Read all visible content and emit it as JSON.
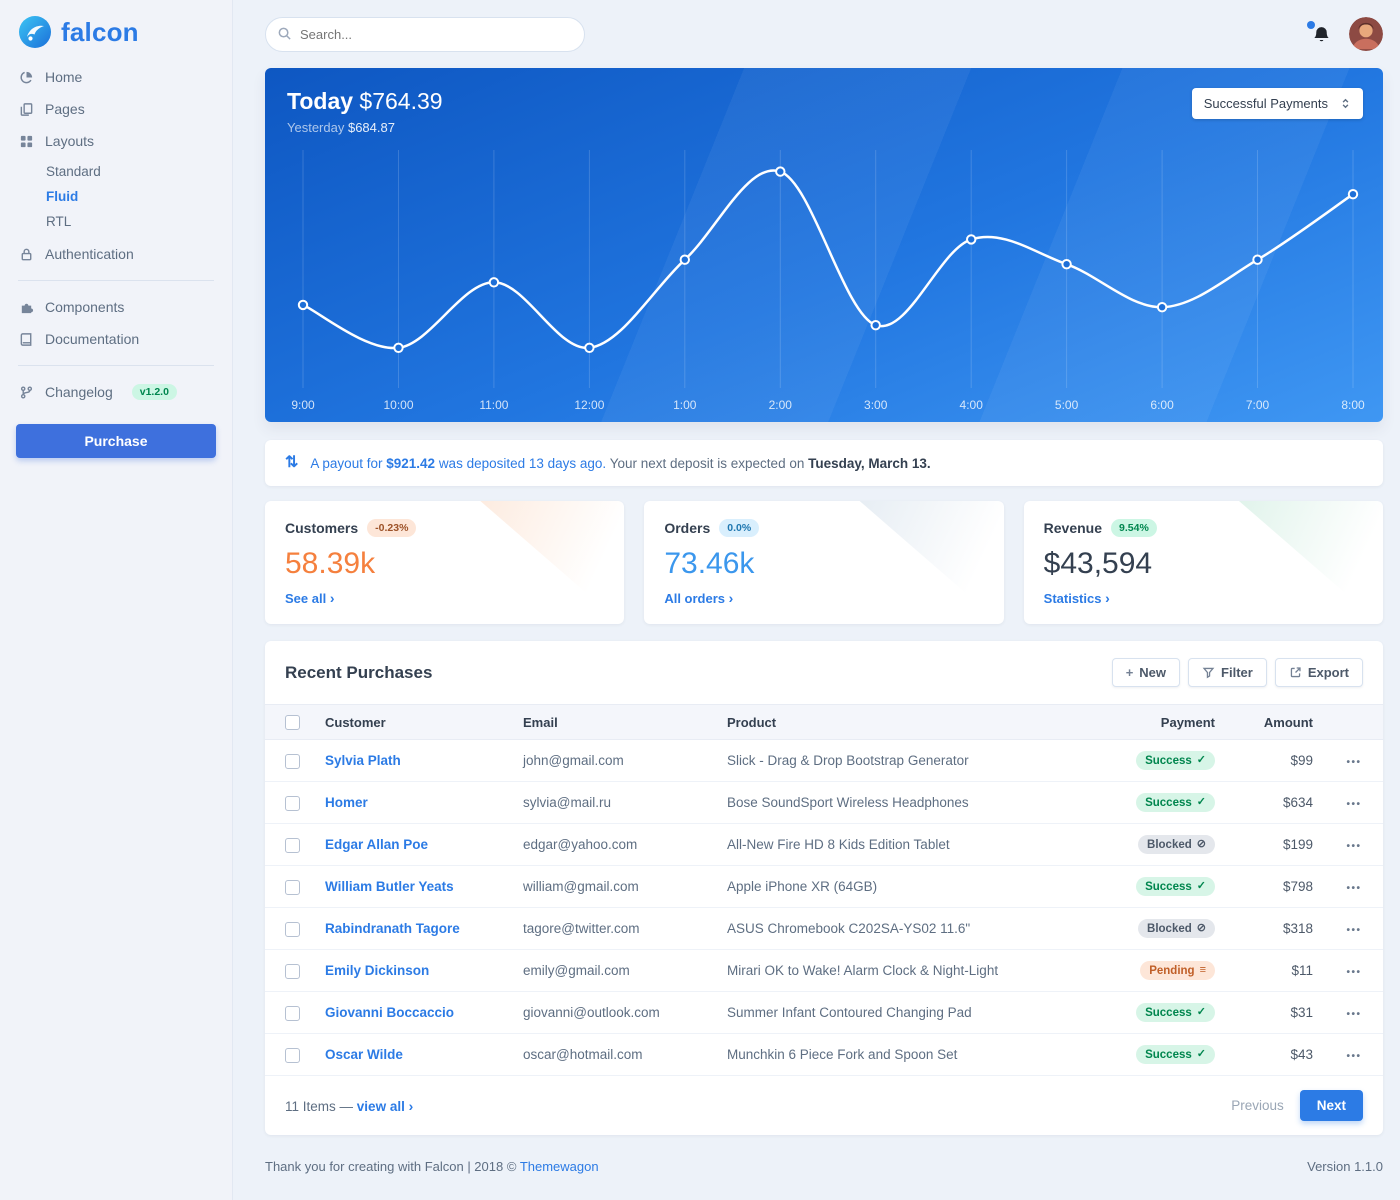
{
  "brand": {
    "name": "falcon"
  },
  "topbar": {
    "search_placeholder": "Search..."
  },
  "sidebar": {
    "items": [
      {
        "label": "Home"
      },
      {
        "label": "Pages"
      },
      {
        "label": "Layouts"
      },
      {
        "label": "Authentication"
      },
      {
        "label": "Components"
      },
      {
        "label": "Documentation"
      },
      {
        "label": "Changelog"
      }
    ],
    "layouts_children": [
      {
        "label": "Standard"
      },
      {
        "label": "Fluid"
      },
      {
        "label": "RTL"
      }
    ],
    "changelog_badge": "v1.2.0",
    "purchase_label": "Purchase"
  },
  "chart_header": {
    "today_label": "Today",
    "today_value": "$764.39",
    "yesterday_label": "Yesterday",
    "yesterday_value": "$684.87",
    "dropdown_label": "Successful Payments"
  },
  "chart_data": {
    "type": "line",
    "title": "Today $764.39",
    "x": [
      "9:00",
      "10:00",
      "11:00",
      "12:00",
      "1:00",
      "2:00",
      "3:00",
      "4:00",
      "5:00",
      "6:00",
      "7:00",
      "8:00"
    ],
    "series": [
      {
        "name": "Successful Payments",
        "values": [
          35,
          16,
          45,
          16,
          55,
          94,
          26,
          64,
          53,
          34,
          55,
          84
        ]
      }
    ],
    "ylim": [
      0,
      100
    ],
    "grid": "vertical",
    "line_color": "#ffffff"
  },
  "payout": {
    "lead": "A payout for",
    "amount": "$921.42",
    "lead_rest": "was deposited 13 days ago.",
    "middle": "Your next deposit is expected on",
    "date": "Tuesday, March 13."
  },
  "stats": [
    {
      "title": "Customers",
      "badge": "-0.23%",
      "value": "58.39k",
      "link": "See all"
    },
    {
      "title": "Orders",
      "badge": "0.0%",
      "value": "73.46k",
      "link": "All orders"
    },
    {
      "title": "Revenue",
      "badge": "9.54%",
      "value": "$43,594",
      "link": "Statistics"
    }
  ],
  "table": {
    "title": "Recent Purchases",
    "actions": {
      "new": "New",
      "filter": "Filter",
      "export": "Export"
    },
    "columns": [
      "Customer",
      "Email",
      "Product",
      "Payment",
      "Amount"
    ],
    "rows": [
      {
        "customer": "Sylvia Plath",
        "email": "john@gmail.com",
        "product": "Slick - Drag & Drop Bootstrap Generator",
        "payment": "Success",
        "payment_type": "success",
        "amount": "$99"
      },
      {
        "customer": "Homer",
        "email": "sylvia@mail.ru",
        "product": "Bose SoundSport Wireless Headphones",
        "payment": "Success",
        "payment_type": "success",
        "amount": "$634"
      },
      {
        "customer": "Edgar Allan Poe",
        "email": "edgar@yahoo.com",
        "product": "All-New Fire HD 8 Kids Edition Tablet",
        "payment": "Blocked",
        "payment_type": "blocked",
        "amount": "$199"
      },
      {
        "customer": "William Butler Yeats",
        "email": "william@gmail.com",
        "product": "Apple iPhone XR (64GB)",
        "payment": "Success",
        "payment_type": "success",
        "amount": "$798"
      },
      {
        "customer": "Rabindranath Tagore",
        "email": "tagore@twitter.com",
        "product": "ASUS Chromebook C202SA-YS02 11.6\"",
        "payment": "Blocked",
        "payment_type": "blocked",
        "amount": "$318"
      },
      {
        "customer": "Emily Dickinson",
        "email": "emily@gmail.com",
        "product": "Mirari OK to Wake! Alarm Clock & Night-Light",
        "payment": "Pending",
        "payment_type": "pending",
        "amount": "$11"
      },
      {
        "customer": "Giovanni Boccaccio",
        "email": "giovanni@outlook.com",
        "product": "Summer Infant Contoured Changing Pad",
        "payment": "Success",
        "payment_type": "success",
        "amount": "$31"
      },
      {
        "customer": "Oscar Wilde",
        "email": "oscar@hotmail.com",
        "product": "Munchkin 6 Piece Fork and Spoon Set",
        "payment": "Success",
        "payment_type": "success",
        "amount": "$43"
      }
    ],
    "footer": {
      "items_text": "11 Items —",
      "view_all": "view all",
      "previous": "Previous",
      "next": "Next"
    }
  },
  "icons": {
    "chevron_right": "›",
    "check": "✓",
    "ban": "⊘",
    "stream": "≡",
    "payout_arrows": "⇅",
    "ellipsis": "•••",
    "plus": "+"
  },
  "colors": {
    "primary": "#2c7be5",
    "warning": "#f5803e",
    "success": "#00864e",
    "chart_top": "#0e57c2",
    "chart_bottom": "#3f97f3"
  },
  "footer": {
    "text": "Thank you for creating with Falcon | 2018 ©",
    "link": "Themewagon",
    "version": "Version 1.1.0"
  }
}
